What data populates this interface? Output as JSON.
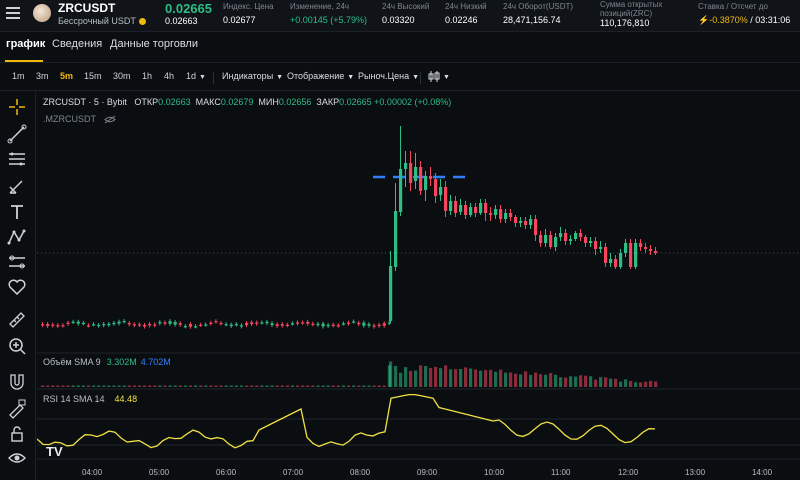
{
  "header": {
    "pair": "ZRCUSDT",
    "contract_type": "Бессрочный USDT",
    "last_price": "0.02665",
    "mark_price": "0.02663",
    "stats": [
      {
        "label": "Индекс. Цена",
        "value": "0.02677"
      },
      {
        "label": "Изменение, 24ч",
        "value": "+0.00145 (+5.79%)"
      },
      {
        "label": "24ч Высокий",
        "value": "0.03320"
      },
      {
        "label": "24ч Низкий",
        "value": "0.02246"
      },
      {
        "label": "24ч Оборот(USDT)",
        "value": "28,471,156.74"
      },
      {
        "label": "Сумма открытых позиций(ZRC)",
        "value": "110,176,810"
      },
      {
        "label": "Ставка / Отсчет до",
        "value_rate": "-0.3870%",
        "value_countdown": "/ 03:31:06"
      }
    ]
  },
  "tabs": [
    {
      "label": "график"
    },
    {
      "label": "Сведения"
    },
    {
      "label": "Данные торговли"
    }
  ],
  "toolbar": {
    "timeframes": [
      "1m",
      "3m",
      "5m",
      "15m",
      "30m",
      "1h",
      "4h",
      "1d"
    ],
    "active_timeframe": "5m",
    "indicators_label": "Индикаторы",
    "display_label": "Отображение",
    "price_type_label": "Рыноч.Цена"
  },
  "chart": {
    "legend_symbol": "ZRCUSDT · 5 · Bybit",
    "open_label": "ОТКР",
    "open": "0.02663",
    "high_label": "МАКС",
    "high": "0.02679",
    "low_label": "МИН",
    "low": "0.02656",
    "close_label": "ЗАКР",
    "close": "0.02665",
    "change": "+0.00002 (+0.08%)",
    "sub_symbol": ".MZRCUSDT",
    "volume_legend": "Объём SMA 9",
    "volume_value_1": "3.302M",
    "volume_value_2": "4.702M",
    "rsi_legend": "RSI 14 SMA 14",
    "rsi_value": "44.48",
    "time_axis": [
      "04:00",
      "05:00",
      "06:00",
      "07:00",
      "08:00",
      "09:00",
      "10:00",
      "11:00",
      "12:00",
      "13:00",
      "14:00"
    ],
    "logo_text": "TV"
  },
  "colors": {
    "up": "#2ebd85",
    "down": "#f6465d",
    "accent": "#f0b90b",
    "rsi": "#f0e042",
    "volume_sma": "#2f7fff"
  },
  "sidebar_icons": [
    "crosshair-icon",
    "trend-line-icon",
    "fib-icon",
    "brush-icon",
    "text-icon",
    "pattern-icon",
    "forecast-icon",
    "heart-icon",
    "ruler-icon",
    "zoom-icon",
    "magnet-icon",
    "lock-drawings-icon",
    "lock-icon",
    "eye-icon",
    "trash-icon"
  ]
}
